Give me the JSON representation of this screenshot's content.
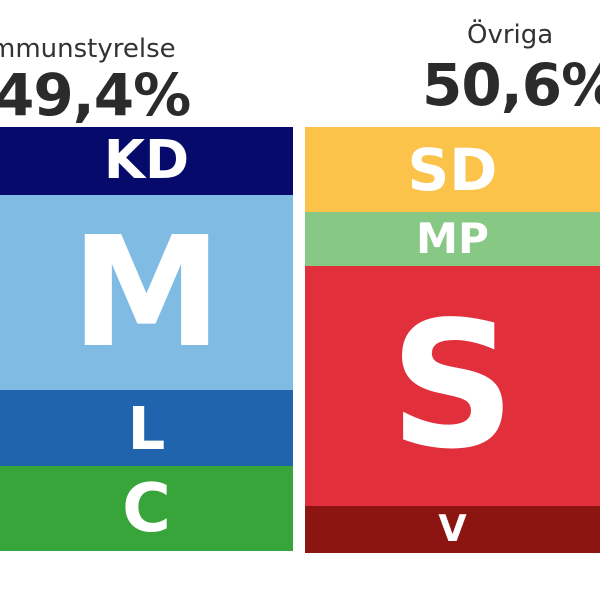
{
  "chart_data": {
    "type": "stacked-bar",
    "blocks": [
      {
        "label": "mmunstyrelse",
        "percent_text": "49,4%",
        "percent": 49.4,
        "segments": [
          {
            "party": "KD",
            "color": "#050a6b",
            "share": 0.16
          },
          {
            "party": "M",
            "color": "#7fbbe3",
            "share": 0.458
          },
          {
            "party": "L",
            "color": "#1f64ad",
            "share": 0.178
          },
          {
            "party": "C",
            "color": "#38a53a",
            "share": 0.2
          }
        ]
      },
      {
        "label": "Övriga",
        "percent_text": "50,6%",
        "percent": 50.6,
        "segments": [
          {
            "party": "SD",
            "color": "#fcc34b",
            "share": 0.2
          },
          {
            "party": "MP",
            "color": "#86c884",
            "share": 0.127
          },
          {
            "party": "S",
            "color": "#e12f3c",
            "share": 0.563
          },
          {
            "party": "V",
            "color": "#8c1512",
            "share": 0.11
          }
        ]
      }
    ]
  }
}
